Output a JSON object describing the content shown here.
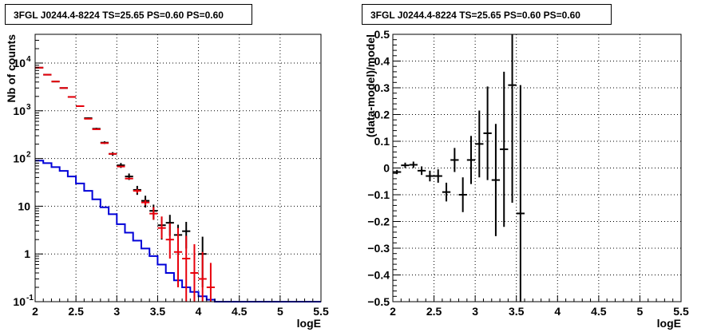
{
  "chart_data": [
    {
      "type": "histogram",
      "title": "3FGL J0244.4-8224 TS=25.65 PS=0.60 PS=0.60",
      "xlabel": "logE",
      "ylabel": "Nb of counts",
      "xlim": [
        2,
        5.5
      ],
      "ylim": [
        0.1,
        40000
      ],
      "yscale": "log",
      "grid": true,
      "xticks": [
        "2",
        "2.5",
        "3",
        "3.5",
        "4",
        "4.5",
        "5",
        "5.5"
      ],
      "yticks": [
        {
          "value": 0.1,
          "label": "10",
          "exp": "-1"
        },
        {
          "value": 1,
          "label": "1",
          "exp": ""
        },
        {
          "value": 10,
          "label": "10",
          "exp": ""
        },
        {
          "value": 100,
          "label": "10",
          "exp": "2"
        },
        {
          "value": 1000,
          "label": "10",
          "exp": "3"
        },
        {
          "value": 10000,
          "label": "10",
          "exp": "4"
        }
      ],
      "bin_width": 0.1,
      "series": [
        {
          "kind": "points-black",
          "color": "#000000",
          "x": [
            2.05,
            2.15,
            2.25,
            2.35,
            2.45,
            2.55,
            2.65,
            2.75,
            2.85,
            2.95,
            3.05,
            3.15,
            3.25,
            3.35,
            3.45,
            3.55,
            3.65,
            3.75,
            3.85,
            4.05
          ],
          "y": [
            8000,
            5700,
            4100,
            3000,
            1950,
            1250,
            700,
            420,
            215,
            125,
            72,
            42,
            22,
            13,
            8,
            4,
            4.5,
            2.5,
            3,
            1
          ],
          "err_lo": [
            90,
            75,
            64,
            55,
            44,
            35,
            26,
            20,
            14,
            11,
            8.5,
            6.5,
            4.7,
            3.6,
            2.8,
            2,
            2.1,
            1.6,
            1.7,
            0.8
          ],
          "err_hi": [
            90,
            75,
            64,
            55,
            44,
            35,
            26,
            20,
            14,
            11,
            8.5,
            6.5,
            4.7,
            3.6,
            2.8,
            2,
            2.1,
            1.6,
            1.7,
            1.3
          ]
        },
        {
          "kind": "model-red",
          "color": "#e8000b",
          "x": [
            2.05,
            2.15,
            2.25,
            2.35,
            2.45,
            2.55,
            2.65,
            2.75,
            2.85,
            2.95,
            3.05,
            3.15,
            3.25,
            3.35,
            3.45,
            3.55,
            3.65,
            3.75,
            3.85,
            3.95,
            4.05,
            4.15
          ],
          "y": [
            8000,
            5700,
            4100,
            3000,
            1950,
            1250,
            680,
            410,
            210,
            125,
            68,
            38,
            21,
            12,
            7,
            3.5,
            2,
            1.1,
            0.8,
            0.4,
            0.3,
            0.2
          ],
          "err_lo": [
            0,
            0,
            0,
            0,
            0,
            0,
            0,
            0,
            0,
            0,
            0,
            0,
            2,
            1.5,
            1.8,
            1.4,
            1.2,
            0.9,
            0.7,
            0.35,
            0.25,
            0.15
          ],
          "err_hi": [
            0,
            0,
            0,
            0,
            0,
            0,
            0,
            0,
            0,
            0,
            0,
            0,
            2,
            1.5,
            2.6,
            2.6,
            2.4,
            2.4,
            1.6,
            1.2,
            0.8,
            0.45
          ]
        },
        {
          "kind": "step-blue",
          "color": "#0000d8",
          "edges": [
            2.0,
            2.1,
            2.2,
            2.3,
            2.4,
            2.5,
            2.6,
            2.7,
            2.8,
            2.9,
            3.0,
            3.1,
            3.2,
            3.3,
            3.4,
            3.5,
            3.6,
            3.7,
            3.8,
            3.9,
            4.0,
            4.1,
            4.2,
            4.3,
            5.5
          ],
          "y": [
            90,
            80,
            66,
            55,
            42,
            30,
            21,
            14,
            9.5,
            6.8,
            4.2,
            2.8,
            1.9,
            1.3,
            0.9,
            0.6,
            0.4,
            0.28,
            0.2,
            0.16,
            0.13,
            0.11,
            0.1,
            0.1
          ]
        }
      ]
    },
    {
      "type": "scatter",
      "title": "3FGL J0244.4-8224 TS=25.65 PS=0.60 PS=0.60",
      "xlabel": "logE",
      "ylabel": "(data-model)/model",
      "xlim": [
        2,
        5.5
      ],
      "ylim": [
        -0.5,
        0.5
      ],
      "grid": true,
      "xticks": [
        "2",
        "2.5",
        "3",
        "3.5",
        "4",
        "4.5",
        "5",
        "5.5"
      ],
      "yticks": [
        "0.5",
        "0.4",
        "0.3",
        "0.2",
        "0.1",
        "0",
        "−0.1",
        "−0.2",
        "−0.3",
        "−0.4",
        "−0.5"
      ],
      "series": [
        {
          "color": "#000000",
          "x": [
            2.05,
            2.15,
            2.25,
            2.35,
            2.45,
            2.55,
            2.65,
            2.75,
            2.85,
            2.95,
            3.05,
            3.15,
            3.25,
            3.35,
            3.45,
            3.55
          ],
          "y": [
            -0.015,
            0.01,
            0.012,
            -0.01,
            -0.03,
            -0.03,
            -0.09,
            0.03,
            -0.1,
            0.03,
            0.09,
            0.13,
            -0.045,
            0.07,
            0.31,
            -0.17
          ],
          "err": [
            0.008,
            0.01,
            0.012,
            0.016,
            0.02,
            0.025,
            0.035,
            0.045,
            0.065,
            0.09,
            0.125,
            0.175,
            0.21,
            0.29,
            0.44,
            0.48
          ]
        }
      ]
    }
  ]
}
